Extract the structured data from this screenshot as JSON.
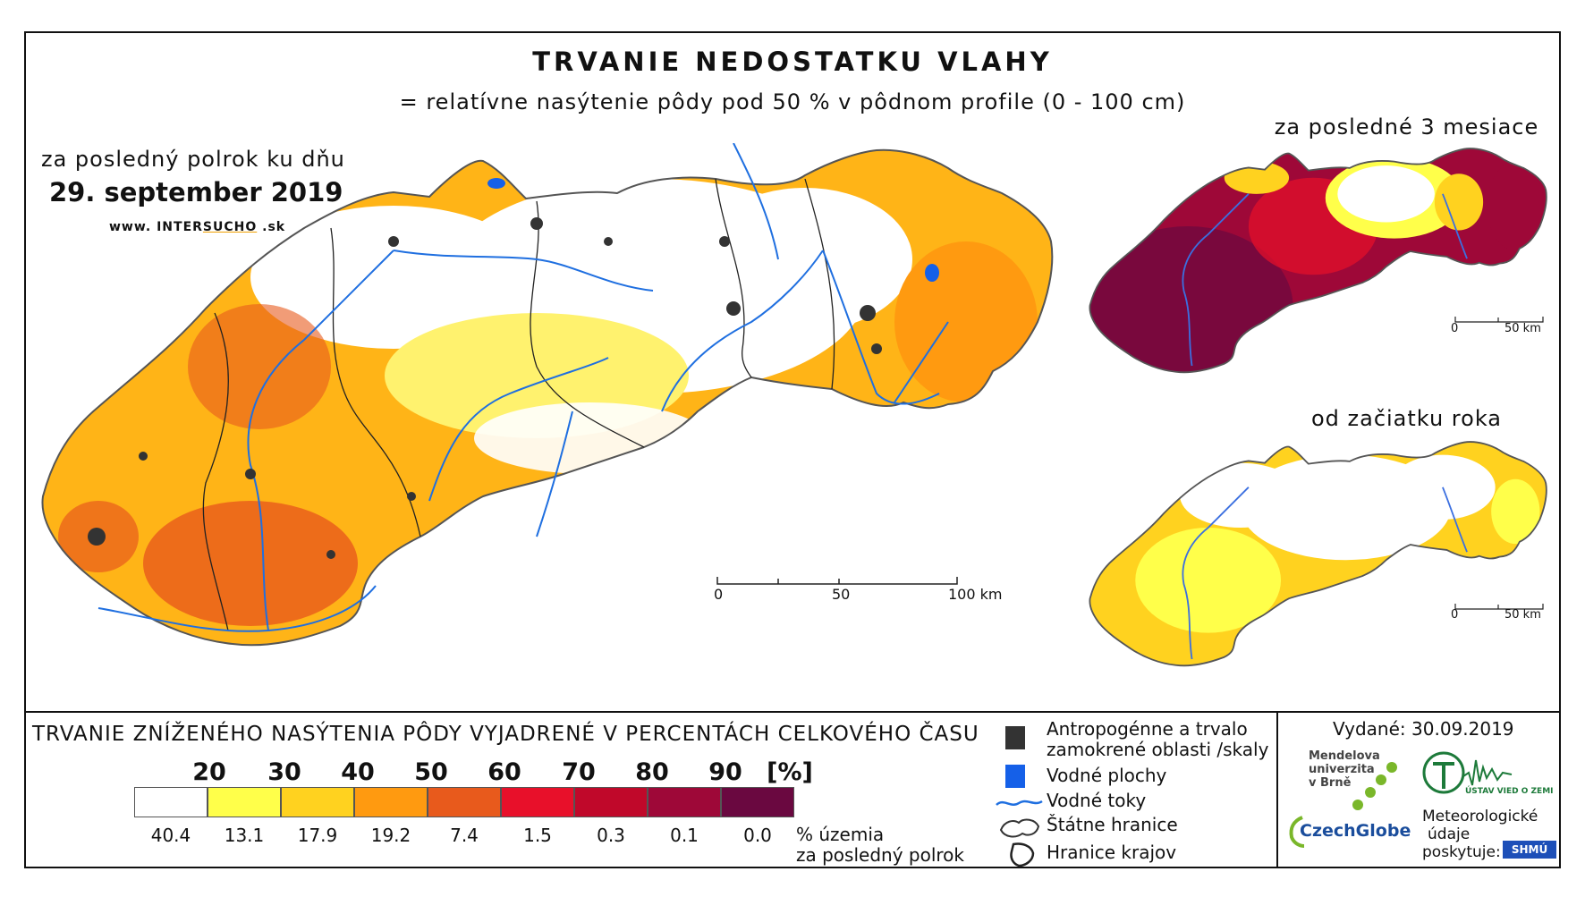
{
  "title": "TRVANIE NEDOSTATKU VLAHY",
  "subtitle": "= relatívne nasýtenie pôdy pod 50 % v pôdnom profile (0 - 100 cm)",
  "main_map": {
    "period_label": "za posledný polrok ku dňu",
    "date": "29. september 2019",
    "website_prefix": "www. INTER",
    "website_highlight": "SUCHO",
    "website_suffix": " .sk",
    "scale_labels": [
      "0",
      "50",
      "100 km"
    ]
  },
  "inset_3m": {
    "label": "za posledné 3 mesiace",
    "scale_labels": [
      "0",
      "50 km"
    ]
  },
  "inset_ytd": {
    "label": "od začiatku roka",
    "scale_labels": [
      "0",
      "50 km"
    ]
  },
  "legend": {
    "title": "TRVANIE ZNÍŽENÉHO NASÝTENIA PÔDY VYJADRENÉ V PERCENTÁCH CELKOVÉHO ČASU",
    "thresholds": [
      "20",
      "30",
      "40",
      "50",
      "60",
      "70",
      "80",
      "90"
    ],
    "unit": "[%]",
    "classes": [
      {
        "color": "#ffffff",
        "share": "40.4"
      },
      {
        "color": "#ffff4a",
        "share": "13.1"
      },
      {
        "color": "#ffd21f",
        "share": "17.9"
      },
      {
        "color": "#ff9a10",
        "share": "19.2"
      },
      {
        "color": "#e85a1c",
        "share": "7.4"
      },
      {
        "color": "#e8102a",
        "share": "1.5"
      },
      {
        "color": "#c0082a",
        "share": "0.3"
      },
      {
        "color": "#9e0838",
        "share": "0.1"
      },
      {
        "color": "#6a0840",
        "share": "0.0"
      }
    ],
    "share_label_1": "% územia",
    "share_label_2": "za posledný polrok"
  },
  "symbols": {
    "anthropogenic_1": "Antropogénne a trvalo",
    "anthropogenic_2": "zamokrené oblasti /skaly",
    "water_bodies": "Vodné plochy",
    "rivers": "Vodné toky",
    "state_border": "Štátne hranice",
    "region_border": "Hranice krajov"
  },
  "issued": "Vydané: 30.09.2019",
  "credits": {
    "mendel_1": "Mendelova",
    "mendel_2": "univerzita",
    "mendel_3": "v Brně",
    "czechglobe": "CzechGlobe",
    "institute": "ÚSTAV VIED O ZEMI",
    "met_1": "Meteorologické",
    "met_2": "údaje",
    "met_3": "poskytuje:",
    "shmu": "SHMÚ"
  },
  "colors": {
    "river": "#1f6fe0",
    "anthropogenic": "#333333",
    "water": "#1560e8"
  }
}
